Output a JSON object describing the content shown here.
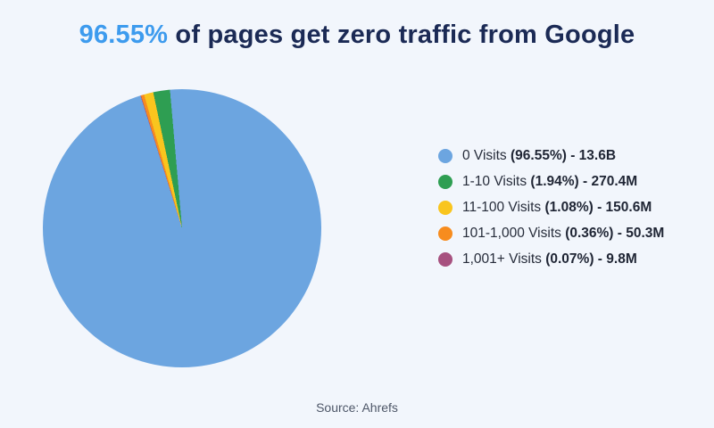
{
  "page": {
    "background_color": "#F2F6FC"
  },
  "title": {
    "highlight": "96.55%",
    "rest": " of pages get zero traffic from Google",
    "highlight_color": "#3D9BEE",
    "text_color": "#1B2A55"
  },
  "source": "Source: Ahrefs",
  "chart_data": {
    "type": "pie",
    "title": "96.55% of pages get zero traffic from Google",
    "legend_position": "right",
    "start_angle_deg": 355,
    "clockwise_render_order": [
      0,
      4,
      3,
      2,
      1
    ],
    "slices": [
      {
        "label": "0 Visits",
        "percent": 96.55,
        "count_label": "13.6B",
        "value_millions": 13600,
        "legend_detail": "(96.55%) - 13.6B",
        "color": "#6CA5E0"
      },
      {
        "label": "1-10 Visits",
        "percent": 1.94,
        "count_label": "270.4M",
        "value_millions": 270.4,
        "legend_detail": "(1.94%) - 270.4M",
        "color": "#2E9E52"
      },
      {
        "label": "11-100 Visits",
        "percent": 1.08,
        "count_label": "150.6M",
        "value_millions": 150.6,
        "legend_detail": "(1.08%) - 150.6M",
        "color": "#F9C51E"
      },
      {
        "label": "101-1,000 Visits",
        "percent": 0.36,
        "count_label": "50.3M",
        "value_millions": 50.3,
        "legend_detail": "(0.36%) - 50.3M",
        "color": "#F78C1E"
      },
      {
        "label": "1,001+ Visits",
        "percent": 0.07,
        "count_label": "9.8M",
        "value_millions": 9.8,
        "legend_detail": "(0.07%) - 9.8M",
        "color": "#A7517F"
      }
    ]
  }
}
